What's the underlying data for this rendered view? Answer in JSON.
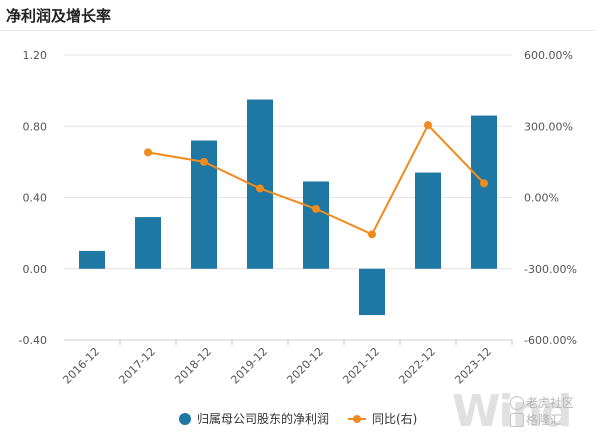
{
  "title": "净利润及增长率",
  "watermark": {
    "big": "Wind",
    "line1": "老虎社区",
    "line2": "格隆汇"
  },
  "chart_data": {
    "type": "bar",
    "categories": [
      "2016-12",
      "2017-12",
      "2018-12",
      "2019-12",
      "2020-12",
      "2021-12",
      "2022-12",
      "2023-12"
    ],
    "series": [
      {
        "name": "归属母公司股东的净利润",
        "type": "bar",
        "axis": "left",
        "color": "#1f77a3",
        "values": [
          0.1,
          0.29,
          0.72,
          0.95,
          0.49,
          -0.26,
          0.54,
          0.86
        ]
      },
      {
        "name": "同比(右)",
        "type": "line",
        "axis": "right",
        "color": "#f08b1d",
        "values": [
          null,
          190.0,
          150.0,
          38.0,
          -48.0,
          -155.0,
          305.0,
          60.0
        ]
      }
    ],
    "left_axis": {
      "ylim": [
        -0.4,
        1.2
      ],
      "ticks": [
        -0.4,
        0.0,
        0.4,
        0.8,
        1.2
      ],
      "tick_labels": [
        "-0.40",
        "0.00",
        "0.40",
        "0.80",
        "1.20"
      ]
    },
    "right_axis": {
      "ylim": [
        -600.0,
        600.0
      ],
      "ticks": [
        -600.0,
        -300.0,
        0.0,
        300.0,
        600.0
      ],
      "tick_labels": [
        "-600.00%",
        "-300.00%",
        "0.00%",
        "300.00%",
        "600.00%"
      ]
    },
    "grid": true,
    "legend": "bottom-center"
  }
}
